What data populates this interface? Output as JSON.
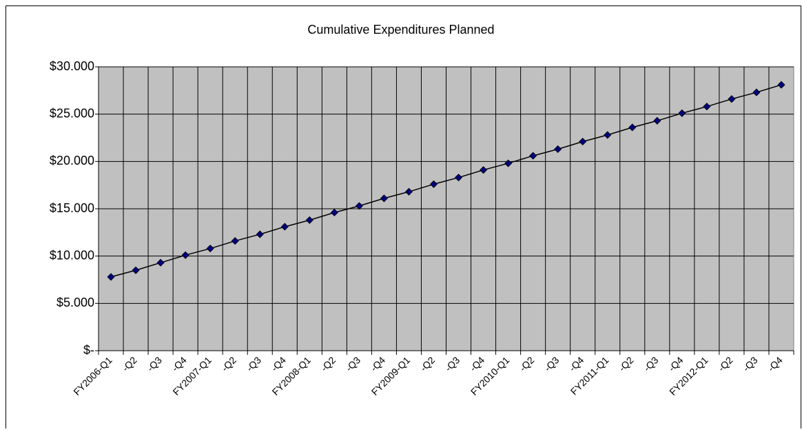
{
  "chart_data": {
    "type": "line",
    "title": "Cumulative Expenditures Planned",
    "categories": [
      "FY2006-Q1",
      "-Q2",
      "-Q3",
      "-Q4",
      "FY2007-Q1",
      "-Q2",
      "-Q3",
      "-Q4",
      "FY2008-Q1",
      "-Q2",
      "-Q3",
      "-Q4",
      "FY2009-Q1",
      "-Q2",
      "-Q3",
      "-Q4",
      "FY2010-Q1",
      "-Q2",
      "-Q3",
      "-Q4",
      "FY2011-Q1",
      "-Q2",
      "-Q3",
      "-Q4",
      "FY2012-Q1",
      "-Q2",
      "-Q3",
      "-Q4"
    ],
    "values": [
      7.8,
      8.5,
      9.3,
      10.1,
      10.8,
      11.6,
      12.3,
      13.1,
      13.8,
      14.6,
      15.3,
      16.1,
      16.8,
      17.6,
      18.3,
      19.1,
      19.8,
      20.6,
      21.3,
      22.1,
      22.8,
      23.6,
      24.3,
      25.1,
      25.8,
      26.6,
      27.3,
      28.1
    ],
    "line_color": "#000000",
    "marker_color": "#000080",
    "plot_background": "#c0c0c0",
    "ylim": [
      0,
      30
    ],
    "yticks": [
      {
        "value": 0,
        "label": "$-"
      },
      {
        "value": 5,
        "label": "$5.000"
      },
      {
        "value": 10,
        "label": "$10.000"
      },
      {
        "value": 15,
        "label": "$15.000"
      },
      {
        "value": 20,
        "label": "$20.000"
      },
      {
        "value": 25,
        "label": "$25.000"
      },
      {
        "value": 30,
        "label": "$30.000"
      }
    ],
    "grid": true
  }
}
